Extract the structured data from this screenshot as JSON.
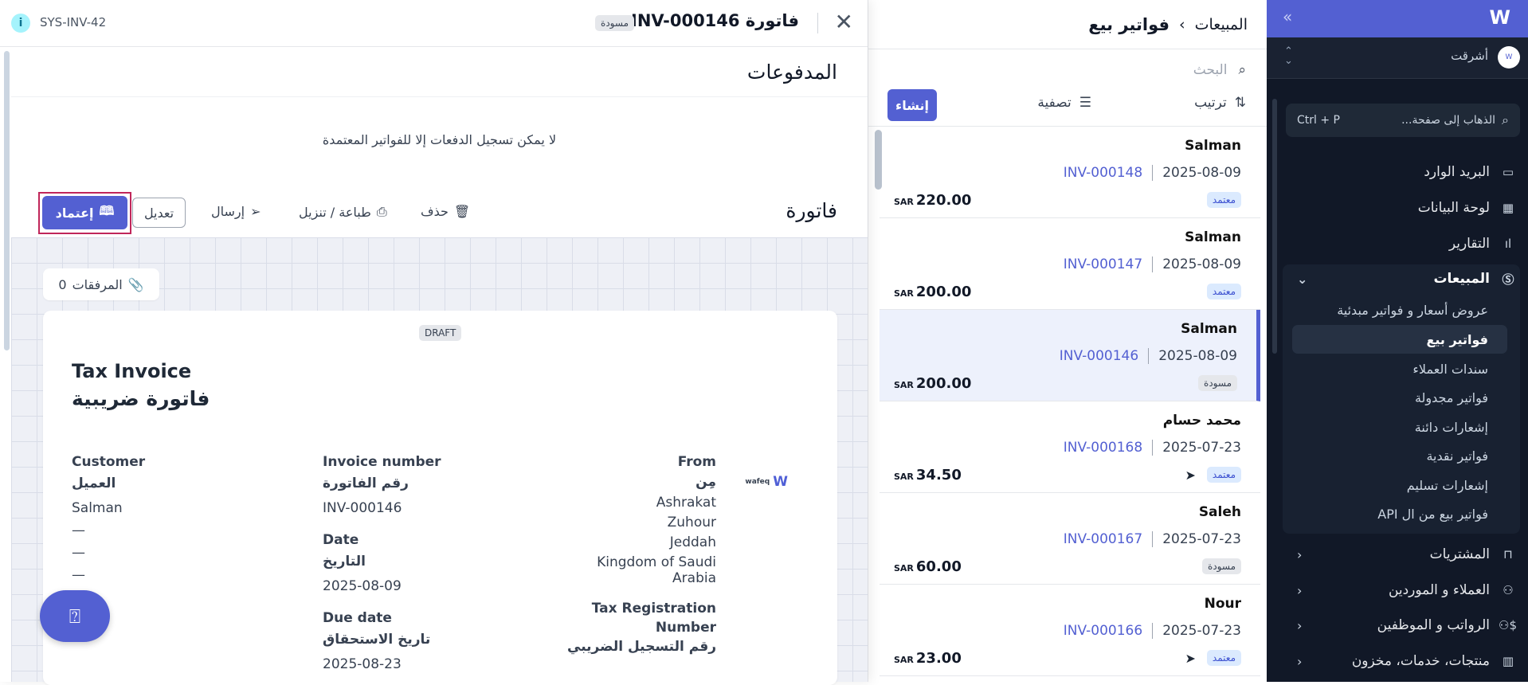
{
  "sidebar": {
    "org_name": "أشرقت",
    "search_placeholder": "الذهاب إلى صفحة...",
    "search_shortcut": "Ctrl + P",
    "items": [
      {
        "label": "البريد الوارد",
        "icon": "inbox-icon"
      },
      {
        "label": "لوحة البيانات",
        "icon": "dashboard-icon"
      },
      {
        "label": "التقارير",
        "icon": "chart-icon"
      }
    ],
    "sales": {
      "label": "المبيعات",
      "icon": "dollar-icon",
      "sub": [
        "عروض أسعار و فواتير مبدئية",
        "فواتير بيع",
        "سندات العملاء",
        "فواتير مجدولة",
        "إشعارات دائنة",
        "فواتير نقدية",
        "إشعارات تسليم",
        "فواتير بيع من ال API"
      ],
      "selected": "فواتير بيع"
    },
    "groups": [
      {
        "label": "المشتريات",
        "icon": "bag-icon"
      },
      {
        "label": "العملاء و الموردين",
        "icon": "users-icon"
      },
      {
        "label": "الرواتب و الموظفين",
        "icon": "payroll-icon"
      },
      {
        "label": "منتجات، خدمات، مخزون",
        "icon": "barcode-icon"
      }
    ],
    "accent": "#5360d2",
    "bg": "#111827"
  },
  "list": {
    "breadcrumb": {
      "parent": "المبيعات",
      "current": "فواتير بيع"
    },
    "search_placeholder": "البحث",
    "sort": "ترتيب",
    "filter": "تصفية",
    "create": "إنشاء",
    "rows": [
      {
        "name": "Salman",
        "date": "2025-08-09",
        "number": "INV-000148",
        "status": "معتمد",
        "currency": "SAR",
        "amount": "220.00",
        "sent": false
      },
      {
        "name": "Salman",
        "date": "2025-08-09",
        "number": "INV-000147",
        "status": "معتمد",
        "currency": "SAR",
        "amount": "200.00",
        "sent": false
      },
      {
        "name": "Salman",
        "date": "2025-08-09",
        "number": "INV-000146",
        "status": "مسودة",
        "currency": "SAR",
        "amount": "200.00",
        "sent": false,
        "selected": true
      },
      {
        "name": "محمد حسام",
        "date": "2025-07-23",
        "number": "INV-000168",
        "status": "معتمد",
        "currency": "SAR",
        "amount": "34.50",
        "sent": true
      },
      {
        "name": "Saleh",
        "date": "2025-07-23",
        "number": "INV-000167",
        "status": "مسودة",
        "currency": "SAR",
        "amount": "60.00",
        "sent": false
      },
      {
        "name": "Nour",
        "date": "2025-07-23",
        "number": "INV-000166",
        "status": "معتمد",
        "currency": "SAR",
        "amount": "23.00",
        "sent": true
      }
    ]
  },
  "drawer": {
    "sys_id": "SYS-INV-42",
    "title": "فاتورة INV-000146",
    "status_badge": "مسودة",
    "payments": {
      "title": "المدفوعات",
      "message": "لا يمكن تسجيل الدفعات إلا للفواتير المعتمدة"
    },
    "toolbar": {
      "title": "فاتورة",
      "approve": "إعتماد",
      "edit": "تعديل",
      "send": "إرسال",
      "print": "طباعة / تنزيل",
      "delete": "حذف"
    },
    "attachments": {
      "label": "المرفقات",
      "count": "0"
    },
    "invoice": {
      "watermark": "DRAFT",
      "title_en": "Tax Invoice",
      "title_ar": "فاتورة ضريبية",
      "customer": {
        "label_en": "Customer",
        "label_ar": "العميل",
        "name": "Salman",
        "lines": [
          "—",
          "—",
          "—"
        ]
      },
      "number": {
        "label_en": "Invoice number",
        "label_ar": "رقم الفاتورة",
        "value": "INV-000146"
      },
      "date": {
        "label_en": "Date",
        "label_ar": "التاريخ",
        "value": "2025-08-09"
      },
      "due": {
        "label_en": "Due date",
        "label_ar": "تاريخ الاستحقاق",
        "value": "2025-08-23"
      },
      "from": {
        "label_en": "From",
        "label_ar": "مِن",
        "lines": [
          "Ashrakat",
          "Zuhour",
          "Jeddah",
          "Kingdom of Saudi",
          "Arabia"
        ]
      },
      "trn": {
        "label_en1": "Tax Registration",
        "label_en2": "Number",
        "label_ar": "رقم التسجيل الضريبي"
      },
      "logo": "wafeq"
    },
    "help_icon": "help-icon"
  }
}
